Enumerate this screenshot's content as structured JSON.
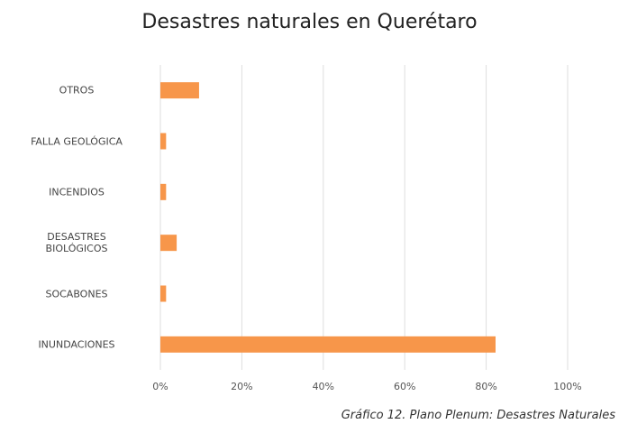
{
  "chart_data": {
    "type": "bar",
    "orientation": "horizontal",
    "title": "Desastres naturales en Querétaro",
    "caption": "Gráfico 12. Plano Plenum: Desastres Naturales",
    "categories": [
      "OTROS",
      "FALLA GEOLÓGICA",
      "INCENDIOS",
      "DESASTRES\nBIOLÓGICOS",
      "SOCABONES",
      "INUNDACIONES"
    ],
    "values": [
      9.5,
      1.4,
      1.4,
      4,
      1.4,
      82.3
    ],
    "color": "#f7964a",
    "xlim": [
      0,
      100
    ],
    "xticks": [
      {
        "value": 0,
        "label": "0%"
      },
      {
        "value": 20,
        "label": "20%"
      },
      {
        "value": 40,
        "label": "40%"
      },
      {
        "value": 60,
        "label": "60%"
      },
      {
        "value": 80,
        "label": "80%"
      },
      {
        "value": 100,
        "label": "100%"
      }
    ],
    "grid": true
  }
}
